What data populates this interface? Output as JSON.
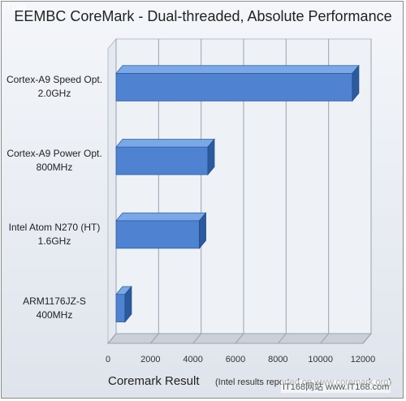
{
  "chart_data": {
    "type": "bar",
    "orientation": "horizontal",
    "style": "3d",
    "title": "EEMBC  CoreMark - Dual-threaded, Absolute Performance",
    "xlabel": "Coremark Result",
    "xlabel_note": "(Intel results reported on www.coremark.org)",
    "ylabel": "",
    "categories": [
      [
        "Cortex-A9 Speed Opt.",
        "2.0GHz"
      ],
      [
        "Cortex-A9 Power Opt.",
        "800MHz"
      ],
      [
        "Intel Atom N270 (HT)",
        "1.6GHz"
      ],
      [
        "ARM1176JZ-S",
        "400MHz"
      ]
    ],
    "values": [
      11500,
      4700,
      4300,
      800
    ],
    "xlim": [
      0,
      12000
    ],
    "xticks": [
      "0",
      "2000",
      "4000",
      "6000",
      "8000",
      "10000",
      "12000"
    ],
    "grid": true,
    "legend": "none"
  },
  "colors": {
    "bar_front": "#4f82d0",
    "bar_top": "#7aa7e6",
    "bar_side": "#2c5a9e",
    "grid": "#9aa3ad",
    "wall": "#eef1f6",
    "floor": "#c9d0da"
  },
  "watermarks": {
    "top": "IT168",
    "bottom": "IT168网站 www.IT168.com"
  }
}
